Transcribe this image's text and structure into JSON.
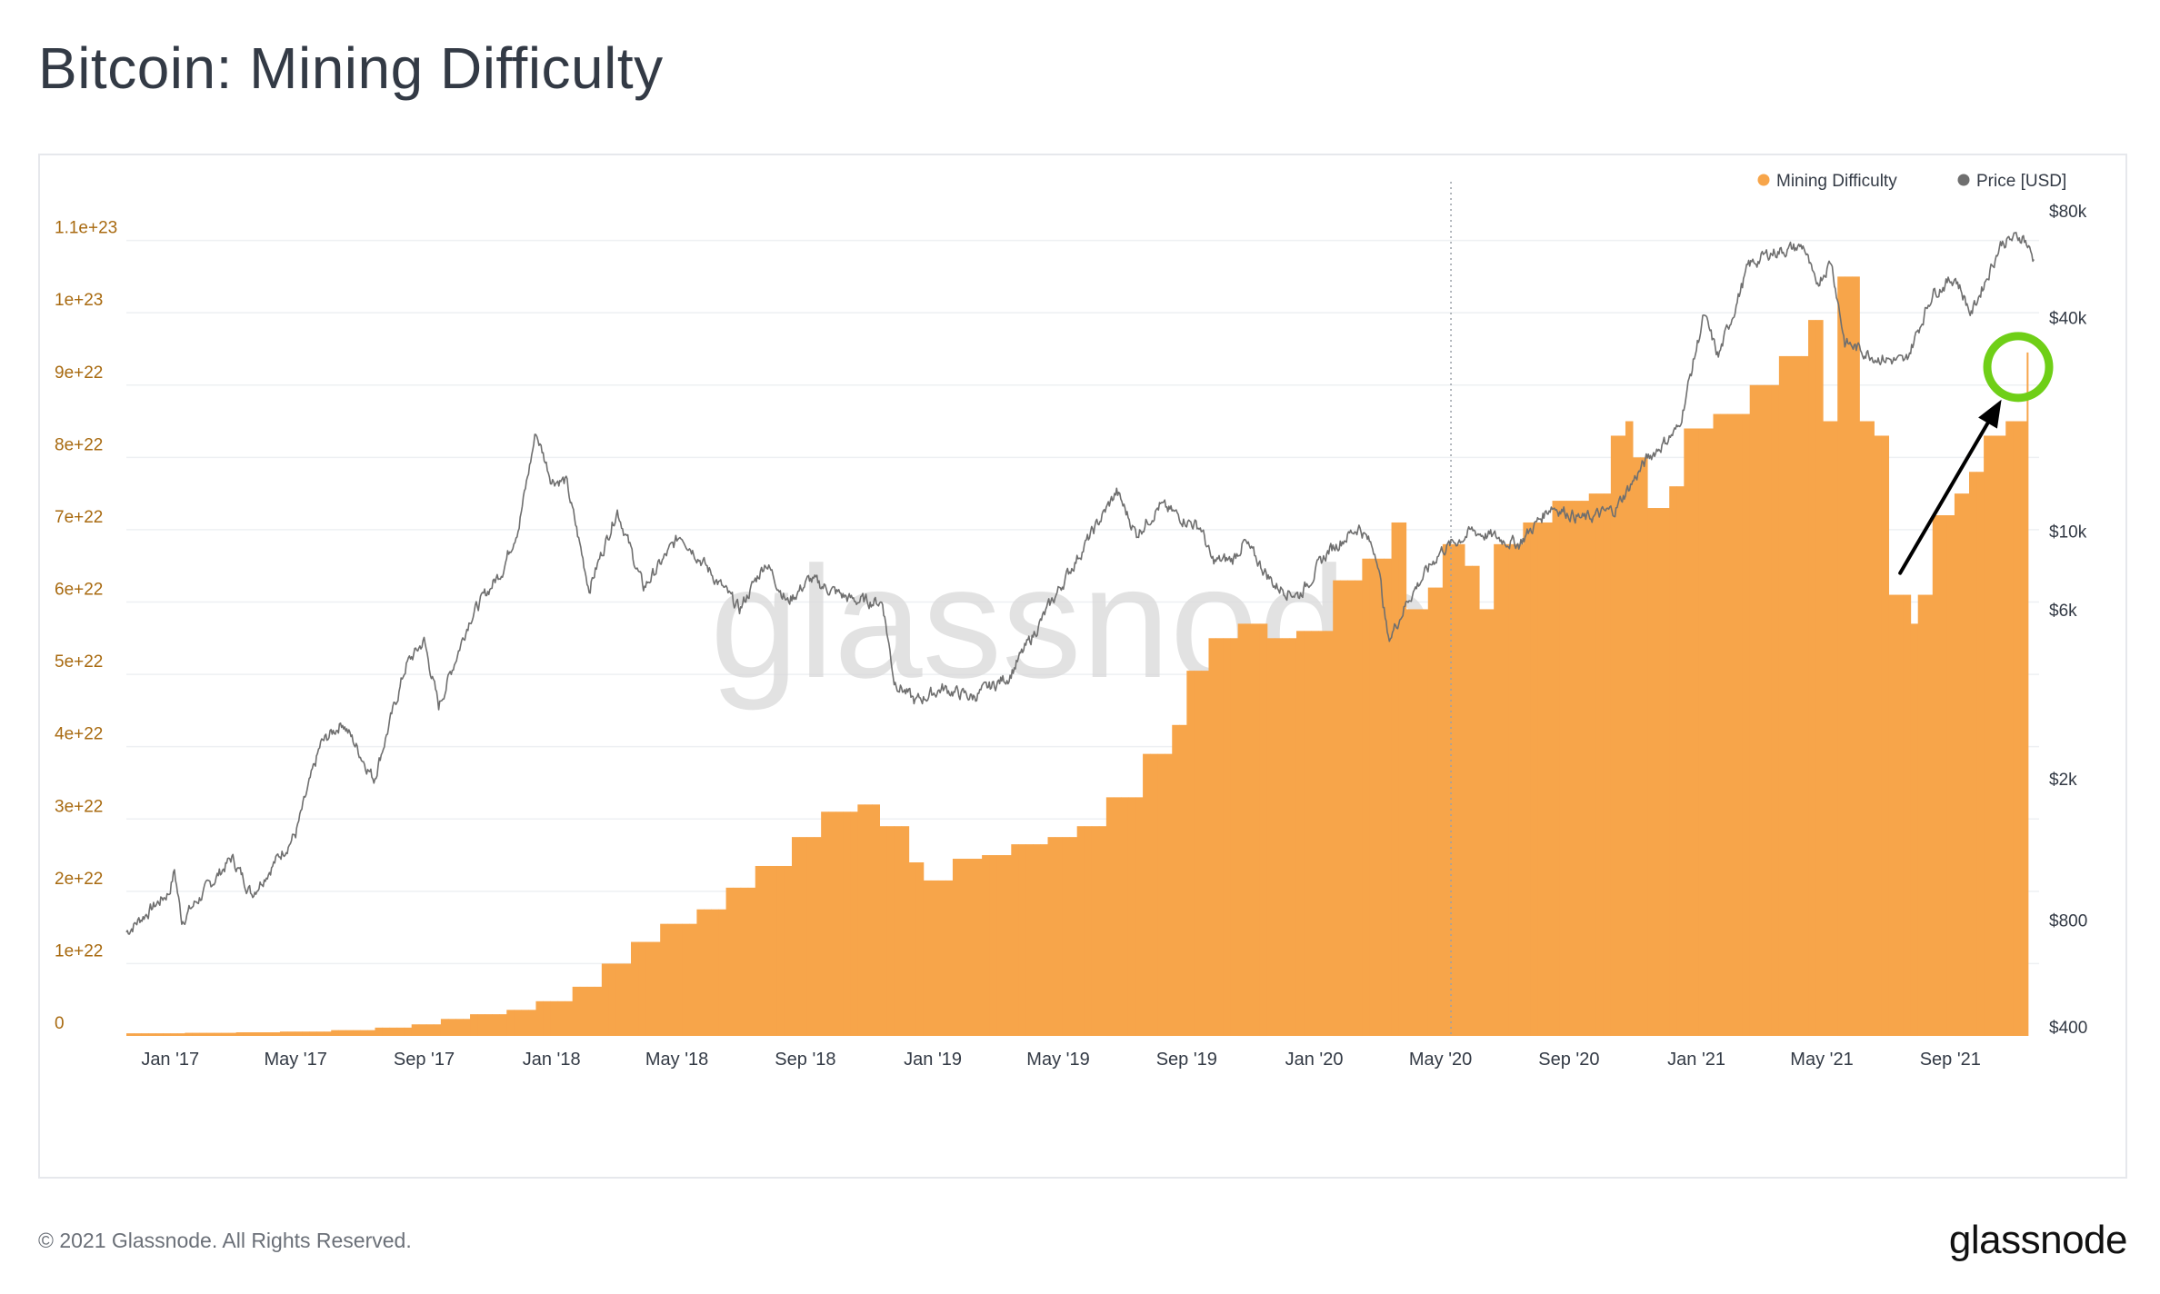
{
  "page": {
    "title": "Bitcoin: Mining Difficulty",
    "copyright": "© 2021 Glassnode. All Rights Reserved.",
    "logo": "glassnode",
    "watermark": "glassnode"
  },
  "colors": {
    "difficulty": "#f7a54a",
    "price": "#6f6f6f",
    "left_axis_text": "#a86a10",
    "highlight_circle": "#6fcf17",
    "arrow": "#000000",
    "grid": "#eef0f3"
  },
  "chart_data": {
    "type": "bar",
    "legend_position": "top-right",
    "grid": true,
    "legend": [
      {
        "name": "Mining Difficulty",
        "color": "#f7a54a"
      },
      {
        "name": "Price [USD]",
        "color": "#6f6f6f"
      }
    ],
    "x_range": [
      "2016-11-20",
      "2021-11-25"
    ],
    "x_ticks": [
      {
        "label": "Jan '17",
        "date": "2017-01-01"
      },
      {
        "label": "May '17",
        "date": "2017-05-01"
      },
      {
        "label": "Sep '17",
        "date": "2017-09-01"
      },
      {
        "label": "Jan '18",
        "date": "2018-01-01"
      },
      {
        "label": "May '18",
        "date": "2018-05-01"
      },
      {
        "label": "Sep '18",
        "date": "2018-09-01"
      },
      {
        "label": "Jan '19",
        "date": "2019-01-01"
      },
      {
        "label": "May '19",
        "date": "2019-05-01"
      },
      {
        "label": "Sep '19",
        "date": "2019-09-01"
      },
      {
        "label": "Jan '20",
        "date": "2020-01-01"
      },
      {
        "label": "May '20",
        "date": "2020-05-01"
      },
      {
        "label": "Sep '20",
        "date": "2020-09-01"
      },
      {
        "label": "Jan '21",
        "date": "2021-01-01"
      },
      {
        "label": "May '21",
        "date": "2021-05-01"
      },
      {
        "label": "Sep '21",
        "date": "2021-09-01"
      }
    ],
    "y_left": {
      "ylim": [
        0,
        1.2e+23
      ],
      "ticks": [
        {
          "label": "0",
          "value": 0
        },
        {
          "label": "1e+22",
          "value": 1e+22
        },
        {
          "label": "2e+22",
          "value": 2e+22
        },
        {
          "label": "3e+22",
          "value": 3e+22
        },
        {
          "label": "4e+22",
          "value": 4e+22
        },
        {
          "label": "5e+22",
          "value": 5e+22
        },
        {
          "label": "6e+22",
          "value": 6e+22
        },
        {
          "label": "7e+22",
          "value": 7e+22
        },
        {
          "label": "8e+22",
          "value": 8e+22
        },
        {
          "label": "9e+22",
          "value": 9e+22
        },
        {
          "label": "1e+23",
          "value": 1e+23
        },
        {
          "label": "1.1e+23",
          "value": 1.1e+23
        }
      ]
    },
    "y_right": {
      "scale": "log",
      "ticks": [
        {
          "label": "$400",
          "value": 400
        },
        {
          "label": "$800",
          "value": 800
        },
        {
          "label": "$2k",
          "value": 2000
        },
        {
          "label": "$6k",
          "value": 6000
        },
        {
          "label": "$10k",
          "value": 10000
        },
        {
          "label": "$40k",
          "value": 40000
        },
        {
          "label": "$80k",
          "value": 80000
        }
      ]
    },
    "series": [
      {
        "name": "Mining Difficulty",
        "kind": "bar",
        "points": [
          [
            "2016-11-20",
            3.6e+20
          ],
          [
            "2017-01-15",
            4.3e+20
          ],
          [
            "2017-03-01",
            5e+20
          ],
          [
            "2017-04-15",
            6e+20
          ],
          [
            "2017-05-31",
            8e+20
          ],
          [
            "2017-07-15",
            1.15e+21
          ],
          [
            "2017-08-15",
            1.6e+21
          ],
          [
            "2017-09-15",
            2.35e+21
          ],
          [
            "2017-10-15",
            3e+21
          ],
          [
            "2017-11-15",
            3.6e+21
          ],
          [
            "2017-12-15",
            4.8e+21
          ],
          [
            "2018-01-15",
            6.8e+21
          ],
          [
            "2018-02-15",
            1e+22
          ],
          [
            "2018-03-15",
            1.3e+22
          ],
          [
            "2018-04-15",
            1.55e+22
          ],
          [
            "2018-05-15",
            1.75e+22
          ],
          [
            "2018-06-15",
            2.05e+22
          ],
          [
            "2018-07-15",
            2.35e+22
          ],
          [
            "2018-08-15",
            2.75e+22
          ],
          [
            "2018-09-15",
            3.1e+22
          ],
          [
            "2018-10-15",
            3.2e+22
          ],
          [
            "2018-11-10",
            2.9e+22
          ],
          [
            "2018-12-05",
            2.4e+22
          ],
          [
            "2018-12-20",
            2.15e+22
          ],
          [
            "2019-01-15",
            2.45e+22
          ],
          [
            "2019-02-15",
            2.5e+22
          ],
          [
            "2019-03-15",
            2.65e+22
          ],
          [
            "2019-04-15",
            2.75e+22
          ],
          [
            "2019-05-15",
            2.9e+22
          ],
          [
            "2019-06-15",
            3.3e+22
          ],
          [
            "2019-07-15",
            3.9e+22
          ],
          [
            "2019-08-15",
            4.3e+22
          ],
          [
            "2019-08-31",
            5.05e+22
          ],
          [
            "2019-09-20",
            5.5e+22
          ],
          [
            "2019-10-15",
            5.7e+22
          ],
          [
            "2019-11-15",
            5.5e+22
          ],
          [
            "2019-12-15",
            5.6e+22
          ],
          [
            "2020-01-15",
            6.3e+22
          ],
          [
            "2020-02-15",
            6.6e+22
          ],
          [
            "2020-03-15",
            7.1e+22
          ],
          [
            "2020-03-29",
            5.9e+22
          ],
          [
            "2020-04-15",
            6.2e+22
          ],
          [
            "2020-05-01",
            6.8e+22
          ],
          [
            "2020-05-20",
            6.5e+22
          ],
          [
            "2020-06-01",
            5.9e+22
          ],
          [
            "2020-06-15",
            6.8e+22
          ],
          [
            "2020-07-15",
            7.1e+22
          ],
          [
            "2020-08-15",
            7.4e+22
          ],
          [
            "2020-09-15",
            7.5e+22
          ],
          [
            "2020-10-05",
            8.3e+22
          ],
          [
            "2020-10-20",
            8.5e+22
          ],
          [
            "2020-11-01",
            8e+22
          ],
          [
            "2020-11-15",
            7.3e+22
          ],
          [
            "2020-12-01",
            7.6e+22
          ],
          [
            "2020-12-15",
            8.4e+22
          ],
          [
            "2021-01-15",
            8.6e+22
          ],
          [
            "2021-02-15",
            9e+22
          ],
          [
            "2021-03-15",
            9.4e+22
          ],
          [
            "2021-04-15",
            9.9e+22
          ],
          [
            "2021-05-01",
            8.5e+22
          ],
          [
            "2021-05-13",
            1.05e+23
          ],
          [
            "2021-05-31",
            8.5e+22
          ],
          [
            "2021-06-15",
            8.3e+22
          ],
          [
            "2021-07-03",
            6.1e+22
          ],
          [
            "2021-07-20",
            5.7e+22
          ],
          [
            "2021-08-01",
            6.1e+22
          ],
          [
            "2021-08-15",
            7.2e+22
          ],
          [
            "2021-09-01",
            7.5e+22
          ],
          [
            "2021-09-15",
            7.8e+22
          ],
          [
            "2021-10-01",
            8.3e+22
          ],
          [
            "2021-10-20",
            8.5e+22
          ],
          [
            "2021-11-10",
            9.3e+22
          ]
        ]
      },
      {
        "name": "Price [USD]",
        "kind": "line",
        "points": [
          [
            "2016-11-20",
            740
          ],
          [
            "2016-12-31",
            960
          ],
          [
            "2017-01-05",
            1100
          ],
          [
            "2017-01-12",
            800
          ],
          [
            "2017-03-01",
            1200
          ],
          [
            "2017-03-20",
            950
          ],
          [
            "2017-05-01",
            1400
          ],
          [
            "2017-05-25",
            2500
          ],
          [
            "2017-06-15",
            2900
          ],
          [
            "2017-07-15",
            2000
          ],
          [
            "2017-08-15",
            4200
          ],
          [
            "2017-09-01",
            4900
          ],
          [
            "2017-09-15",
            3200
          ],
          [
            "2017-10-15",
            5700
          ],
          [
            "2017-11-15",
            7800
          ],
          [
            "2017-12-01",
            10500
          ],
          [
            "2017-12-17",
            19000
          ],
          [
            "2018-01-01",
            14000
          ],
          [
            "2018-01-15",
            13800
          ],
          [
            "2018-02-06",
            6900
          ],
          [
            "2018-03-05",
            11500
          ],
          [
            "2018-03-30",
            6900
          ],
          [
            "2018-05-05",
            9800
          ],
          [
            "2018-06-30",
            6000
          ],
          [
            "2018-07-25",
            8200
          ],
          [
            "2018-08-15",
            6300
          ],
          [
            "2018-09-05",
            7300
          ],
          [
            "2018-10-15",
            6400
          ],
          [
            "2018-11-14",
            6300
          ],
          [
            "2018-11-25",
            3800
          ],
          [
            "2018-12-15",
            3300
          ],
          [
            "2019-01-10",
            3600
          ],
          [
            "2019-02-08",
            3400
          ],
          [
            "2019-03-15",
            3900
          ],
          [
            "2019-04-02",
            4800
          ],
          [
            "2019-05-15",
            8000
          ],
          [
            "2019-06-26",
            12900
          ],
          [
            "2019-07-15",
            9800
          ],
          [
            "2019-08-06",
            11800
          ],
          [
            "2019-09-15",
            10200
          ],
          [
            "2019-09-25",
            8200
          ],
          [
            "2019-10-15",
            8300
          ],
          [
            "2019-10-26",
            9300
          ],
          [
            "2019-11-25",
            7000
          ],
          [
            "2019-12-18",
            6600
          ],
          [
            "2020-01-15",
            8800
          ],
          [
            "2020-02-13",
            10300
          ],
          [
            "2020-03-01",
            8600
          ],
          [
            "2020-03-12",
            4900
          ],
          [
            "2020-04-01",
            6500
          ],
          [
            "2020-05-01",
            8800
          ],
          [
            "2020-06-01",
            10000
          ],
          [
            "2020-07-15",
            9200
          ],
          [
            "2020-08-15",
            11800
          ],
          [
            "2020-09-15",
            10800
          ],
          [
            "2020-10-15",
            11500
          ],
          [
            "2020-11-15",
            16000
          ],
          [
            "2020-12-15",
            19500
          ],
          [
            "2021-01-08",
            40500
          ],
          [
            "2021-01-22",
            31000
          ],
          [
            "2021-02-20",
            56000
          ],
          [
            "2021-03-13",
            61000
          ],
          [
            "2021-04-14",
            63500
          ],
          [
            "2021-04-25",
            49000
          ],
          [
            "2021-05-10",
            58000
          ],
          [
            "2021-05-23",
            34000
          ],
          [
            "2021-06-22",
            31000
          ],
          [
            "2021-07-20",
            29800
          ],
          [
            "2021-08-15",
            47000
          ],
          [
            "2021-09-06",
            52000
          ],
          [
            "2021-09-21",
            41000
          ],
          [
            "2021-10-20",
            65000
          ],
          [
            "2021-11-10",
            68000
          ],
          [
            "2021-11-20",
            58000
          ]
        ]
      }
    ],
    "annotations": [
      {
        "kind": "vertical-line",
        "date": "2020-05-11"
      },
      {
        "kind": "arrow",
        "from": [
          "2021-07-15",
          6.4e+22
        ],
        "to": [
          "2021-10-20",
          8.8e+22
        ]
      },
      {
        "kind": "circle",
        "center": [
          "2021-11-05",
          9.25e+22
        ]
      }
    ]
  }
}
